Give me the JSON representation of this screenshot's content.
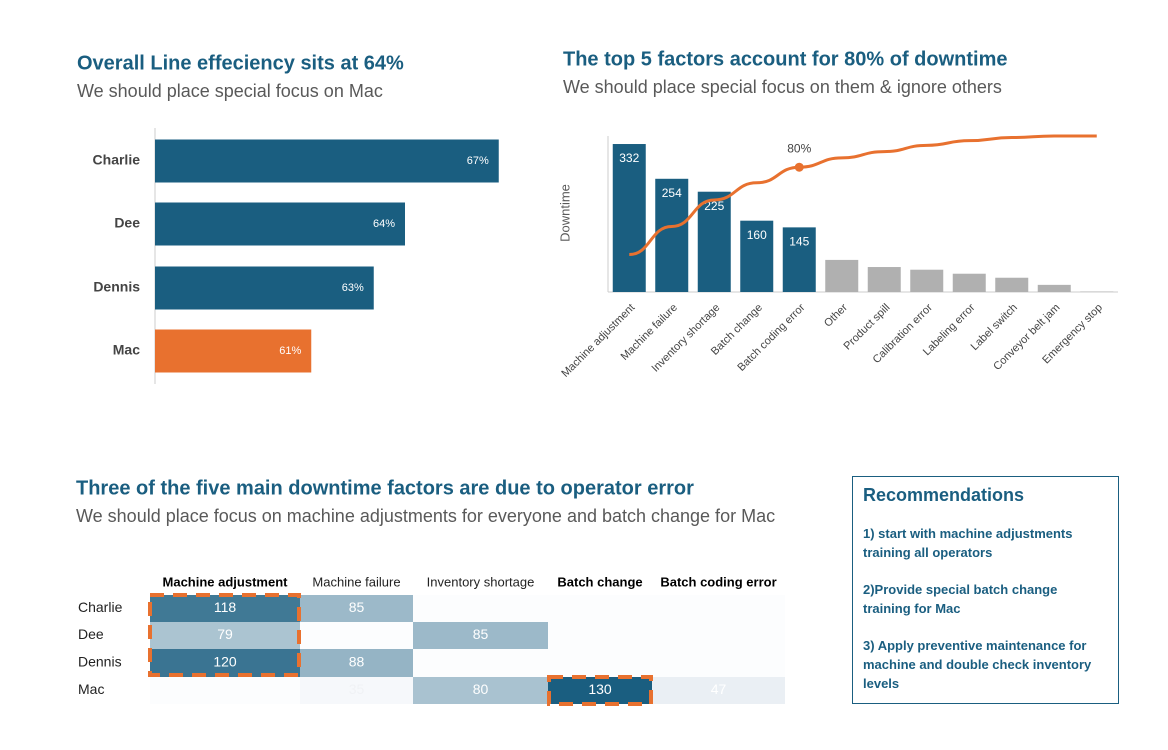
{
  "chart_data": [
    {
      "type": "hbar",
      "title": "Overall Line effeciency sits at 64%",
      "subtitle": "We should place special focus on Mac",
      "categories": [
        "Charlie",
        "Dee",
        "Dennis",
        "Mac"
      ],
      "values": [
        67,
        64,
        63,
        61
      ],
      "value_labels": [
        "67%",
        "64%",
        "63%",
        "61%"
      ],
      "colors": [
        "#1a5e80",
        "#1a5e80",
        "#1a5e80",
        "#e8712f"
      ],
      "xlim": [
        56,
        68
      ]
    },
    {
      "type": "pareto",
      "title": "The top 5 factors account for 80% of downtime",
      "subtitle": "We should place special focus on them & ignore others",
      "y_label": "Downtime",
      "categories": [
        "Machine adjustment",
        "Machine failure",
        "Inventory shortage",
        "Batch change",
        "Batch coding error",
        "Other",
        "Product spill",
        "Calibration error",
        "Labeling error",
        "Label switch",
        "Conveyor belt jam",
        "Emergency stop"
      ],
      "values": [
        332,
        254,
        225,
        160,
        145,
        72,
        56,
        50,
        41,
        32,
        16,
        1
      ],
      "value_labels": [
        "332",
        "254",
        "225",
        "160",
        "145",
        null,
        null,
        null,
        null,
        null,
        null,
        null
      ],
      "colors": [
        "#1a5e80",
        "#1a5e80",
        "#1a5e80",
        "#1a5e80",
        "#1a5e80",
        "#b0b0b0",
        "#b0b0b0",
        "#b0b0b0",
        "#b0b0b0",
        "#b0b0b0",
        "#b0b0b0",
        "#b0b0b0"
      ],
      "ylim": [
        0,
        350
      ],
      "cumulative": {
        "values": [
          24,
          42,
          59,
          70,
          80,
          86,
          90,
          94,
          97,
          99,
          100,
          100
        ],
        "value_labels": [
          null,
          null,
          null,
          null,
          "80%",
          null,
          null,
          null,
          null,
          null,
          null,
          null
        ],
        "color": "#e8712f",
        "axis": "y2"
      },
      "y2lim": [
        0,
        100
      ]
    }
  ],
  "heatmap": {
    "title": "Three of the five main downtime factors are due to operator error",
    "subtitle": "We should place focus on machine adjustments for everyone  and  batch change for Mac",
    "columns": [
      "Machine adjustment",
      "Machine failure",
      "Inventory shortage",
      "Batch change",
      "Batch coding error"
    ],
    "rows": [
      {
        "label": "Charlie",
        "values": [
          118,
          85,
          null,
          null,
          null
        ]
      },
      {
        "label": "Dee",
        "values": [
          79,
          null,
          85,
          null,
          null
        ]
      },
      {
        "label": "Dennis",
        "values": [
          120,
          88,
          null,
          null,
          null
        ]
      },
      {
        "label": "Mac",
        "values": [
          null,
          35,
          80,
          130,
          47
        ]
      }
    ]
  },
  "recommendations": {
    "title": "Recommendations",
    "items": [
      "1) start with machine adjustments training all operators",
      "2)Provide special batch change training for Mac",
      "3) Apply preventive maintenance for machine and double check inventory levels"
    ]
  }
}
